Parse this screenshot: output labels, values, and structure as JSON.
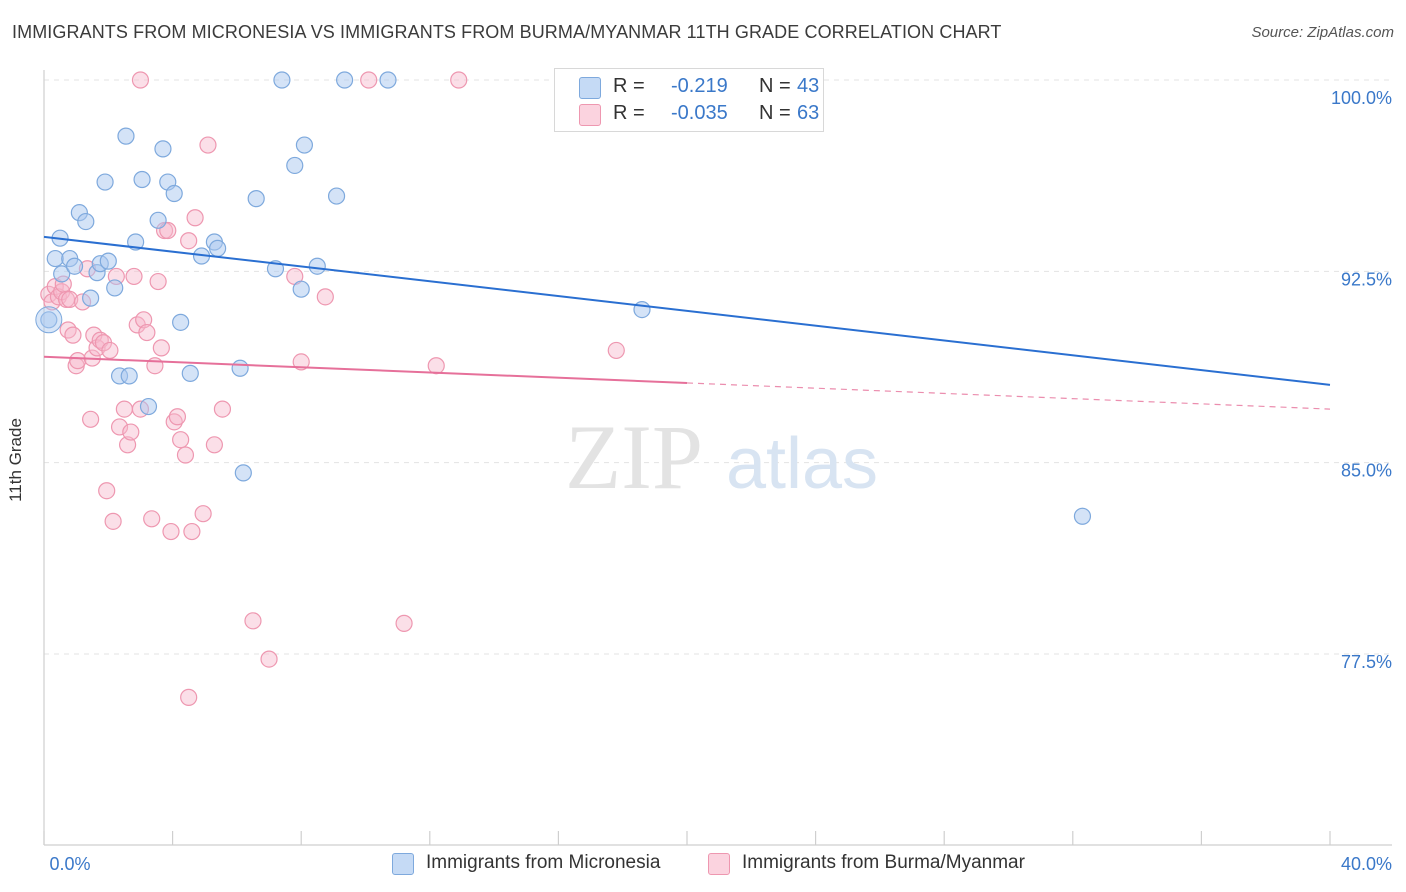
{
  "title": "IMMIGRANTS FROM MICRONESIA VS IMMIGRANTS FROM BURMA/MYANMAR 11TH GRADE CORRELATION CHART",
  "source": "Source: ZipAtlas.com",
  "watermark": {
    "zip": "ZIP",
    "atlas": "atlas"
  },
  "stats": [
    {
      "r_label": "R =",
      "r_value": "-0.219",
      "n_label": "N =",
      "n_value": "43",
      "color": "#a9c8ef"
    },
    {
      "r_label": "R =",
      "r_value": "-0.035",
      "n_label": "N =",
      "n_value": "63",
      "color": "#f7b8cb"
    }
  ],
  "legend": [
    {
      "label": "Immigrants from Micronesia",
      "color": "#a9c8ef"
    },
    {
      "label": "Immigrants from Burma/Myanmar",
      "color": "#f7b8cb"
    }
  ],
  "chart_data": {
    "type": "scatter",
    "xlabel": "",
    "ylabel": "11th Grade",
    "xlim": [
      0,
      40
    ],
    "ylim": [
      70.5,
      101
    ],
    "x_tick_labels": [
      {
        "value": 0,
        "label": "0.0%"
      },
      {
        "value": 40,
        "label": "40.0%"
      }
    ],
    "y_tick_labels": [
      {
        "value": 100,
        "label": "100.0%"
      },
      {
        "value": 92.5,
        "label": "92.5%"
      },
      {
        "value": 85,
        "label": "85.0%"
      },
      {
        "value": 77.5,
        "label": "77.5%"
      }
    ],
    "x_minor_ticks": [
      0,
      4,
      8,
      12,
      16,
      20,
      24,
      28,
      32,
      36,
      40
    ],
    "grid": true,
    "colors": {
      "micronesia_fill": "#a9c8ef",
      "micronesia_stroke": "#7ea9dd",
      "micronesia_line": "#2a6fd1",
      "burma_fill": "#f7b8cb",
      "burma_stroke": "#ee97b0",
      "burma_line": "#e6709a",
      "tick_label": "#3a78c9",
      "grid": "#e3e3e3"
    },
    "series": [
      {
        "name": "Immigrants from Micronesia",
        "trend": {
          "x0": 0,
          "y0": 93.85,
          "x1": 40,
          "y1": 88.05,
          "dashed_from": null
        },
        "points": [
          [
            0.15,
            90.6
          ],
          [
            0.35,
            93.0
          ],
          [
            0.5,
            93.8
          ],
          [
            0.55,
            92.4
          ],
          [
            0.8,
            93.0
          ],
          [
            0.95,
            92.7
          ],
          [
            1.1,
            94.8
          ],
          [
            1.3,
            94.45
          ],
          [
            1.45,
            91.45
          ],
          [
            1.65,
            92.45
          ],
          [
            1.75,
            92.8
          ],
          [
            1.9,
            96.0
          ],
          [
            2.0,
            92.9
          ],
          [
            2.2,
            91.85
          ],
          [
            2.35,
            88.4
          ],
          [
            2.55,
            97.8
          ],
          [
            2.65,
            88.4
          ],
          [
            2.85,
            93.65
          ],
          [
            3.05,
            96.1
          ],
          [
            3.25,
            87.2
          ],
          [
            3.55,
            94.5
          ],
          [
            3.7,
            97.3
          ],
          [
            3.85,
            96.0
          ],
          [
            4.05,
            95.55
          ],
          [
            4.25,
            90.5
          ],
          [
            4.55,
            88.5
          ],
          [
            4.9,
            93.1
          ],
          [
            5.3,
            93.65
          ],
          [
            5.4,
            93.4
          ],
          [
            6.1,
            88.7
          ],
          [
            6.2,
            84.6
          ],
          [
            6.6,
            95.35
          ],
          [
            7.2,
            92.6
          ],
          [
            7.4,
            100.0
          ],
          [
            7.8,
            96.65
          ],
          [
            8.0,
            91.8
          ],
          [
            8.1,
            97.45
          ],
          [
            8.5,
            92.7
          ],
          [
            9.1,
            95.45
          ],
          [
            9.35,
            100.0
          ],
          [
            10.7,
            100.0
          ],
          [
            18.6,
            91.0
          ],
          [
            32.3,
            82.9
          ]
        ]
      },
      {
        "name": "Immigrants from Burma/Myanmar",
        "trend": {
          "x0": 0,
          "y0": 89.15,
          "x1": 40,
          "y1": 87.1,
          "dashed_from": 20
        },
        "points": [
          [
            0.15,
            91.6
          ],
          [
            0.25,
            91.3
          ],
          [
            0.35,
            91.9
          ],
          [
            0.45,
            91.5
          ],
          [
            0.55,
            91.7
          ],
          [
            0.6,
            92.0
          ],
          [
            0.7,
            91.4
          ],
          [
            0.75,
            90.2
          ],
          [
            0.8,
            91.4
          ],
          [
            0.9,
            90.0
          ],
          [
            1.0,
            88.8
          ],
          [
            1.05,
            89.0
          ],
          [
            1.2,
            91.3
          ],
          [
            1.35,
            92.6
          ],
          [
            1.45,
            86.7
          ],
          [
            1.5,
            89.1
          ],
          [
            1.55,
            90.0
          ],
          [
            1.65,
            89.5
          ],
          [
            1.75,
            89.8
          ],
          [
            1.85,
            89.7
          ],
          [
            1.95,
            83.9
          ],
          [
            2.05,
            89.4
          ],
          [
            2.15,
            82.7
          ],
          [
            2.25,
            92.3
          ],
          [
            2.35,
            86.4
          ],
          [
            2.5,
            87.1
          ],
          [
            2.6,
            85.7
          ],
          [
            2.7,
            86.2
          ],
          [
            2.8,
            92.3
          ],
          [
            2.9,
            90.4
          ],
          [
            3.0,
            87.1
          ],
          [
            3.1,
            90.6
          ],
          [
            3.2,
            90.1
          ],
          [
            3.35,
            82.8
          ],
          [
            3.45,
            88.8
          ],
          [
            3.55,
            92.1
          ],
          [
            3.65,
            89.5
          ],
          [
            3.75,
            94.1
          ],
          [
            3.85,
            94.1
          ],
          [
            3.95,
            82.3
          ],
          [
            4.05,
            86.6
          ],
          [
            4.15,
            86.8
          ],
          [
            4.25,
            85.9
          ],
          [
            4.4,
            85.3
          ],
          [
            4.5,
            93.7
          ],
          [
            4.6,
            82.3
          ],
          [
            4.7,
            94.6
          ],
          [
            4.95,
            83.0
          ],
          [
            5.1,
            97.45
          ],
          [
            5.3,
            85.7
          ],
          [
            5.55,
            87.1
          ],
          [
            6.5,
            78.8
          ],
          [
            7.0,
            77.3
          ],
          [
            7.8,
            92.3
          ],
          [
            8.0,
            88.95
          ],
          [
            8.75,
            91.5
          ],
          [
            10.1,
            100.0
          ],
          [
            11.2,
            78.7
          ],
          [
            12.2,
            88.8
          ],
          [
            12.9,
            100.0
          ],
          [
            17.8,
            89.4
          ],
          [
            3.0,
            100.0
          ],
          [
            4.5,
            75.8
          ]
        ]
      }
    ]
  }
}
